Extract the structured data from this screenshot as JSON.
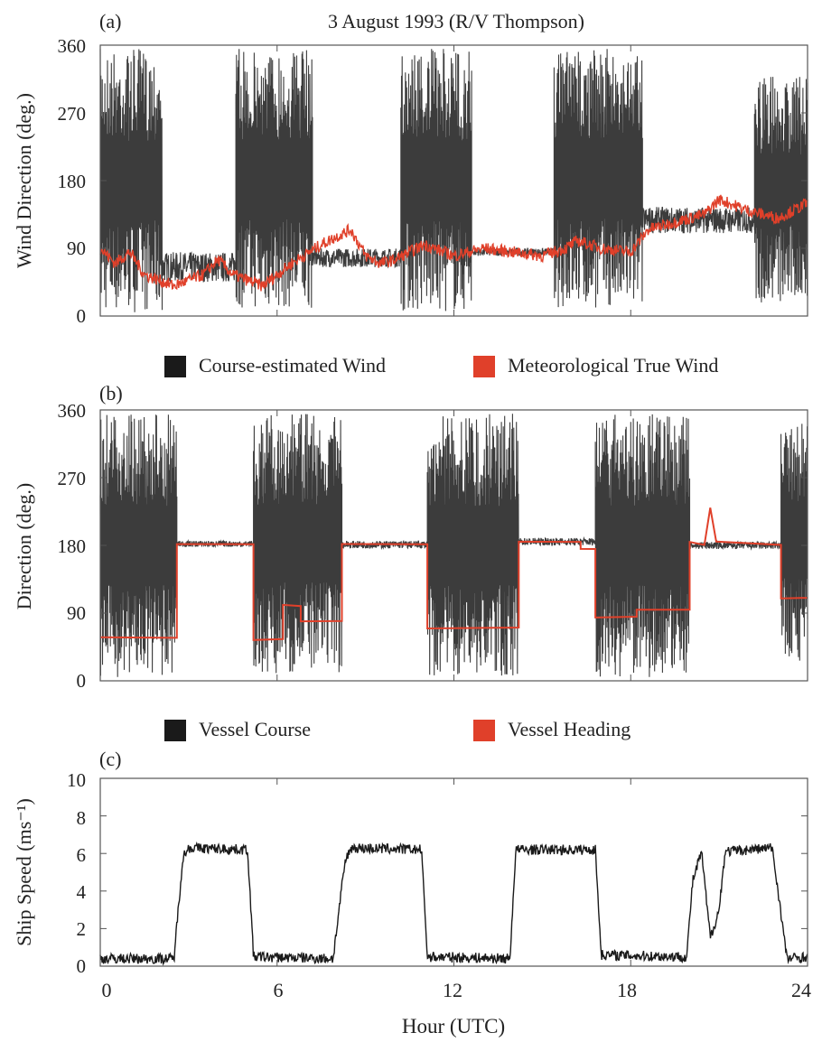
{
  "figure_title": "3 August 1993 (R/V Thompson)",
  "colors": {
    "black_series": "#1a1a1a",
    "red_series": "#e0402a",
    "axis": "#555555"
  },
  "chart_data": [
    {
      "panel": "(a)",
      "type": "line",
      "ylabel": "Wind Direction (deg.)",
      "xlabel": "",
      "xlim": [
        0,
        24
      ],
      "ylim": [
        0,
        360
      ],
      "yticks": [
        "0",
        "90",
        "180",
        "270",
        "360"
      ],
      "xticks": [],
      "legend_placement": "below",
      "series": [
        {
          "name": "Course-estimated Wind",
          "color": "#1a1a1a",
          "style": "oscillating",
          "segments": [
            {
              "x0": 0.0,
              "x1": 2.1,
              "lo": 5,
              "hi": 355
            },
            {
              "x0": 2.1,
              "x1": 4.6,
              "lo": 45,
              "hi": 85
            },
            {
              "x0": 4.6,
              "x1": 7.2,
              "lo": 10,
              "hi": 355
            },
            {
              "x0": 7.2,
              "x1": 10.2,
              "lo": 65,
              "hi": 90
            },
            {
              "x0": 10.2,
              "x1": 12.6,
              "lo": 5,
              "hi": 355
            },
            {
              "x0": 12.6,
              "x1": 15.4,
              "lo": 80,
              "hi": 90
            },
            {
              "x0": 15.4,
              "x1": 18.4,
              "lo": 10,
              "hi": 355
            },
            {
              "x0": 18.4,
              "x1": 22.2,
              "lo": 110,
              "hi": 145
            },
            {
              "x0": 22.2,
              "x1": 24.0,
              "lo": 15,
              "hi": 320
            }
          ]
        },
        {
          "name": "Meteorological True Wind",
          "color": "#e0402a",
          "style": "noisy",
          "points": [
            [
              0,
              90
            ],
            [
              0.5,
              70
            ],
            [
              1,
              85
            ],
            [
              1.5,
              55
            ],
            [
              2.5,
              40
            ],
            [
              3.5,
              55
            ],
            [
              4,
              75
            ],
            [
              4.5,
              55
            ],
            [
              5.5,
              40
            ],
            [
              6.5,
              70
            ],
            [
              7.5,
              95
            ],
            [
              8.5,
              115
            ],
            [
              9,
              80
            ],
            [
              9.5,
              70
            ],
            [
              10,
              75
            ],
            [
              11,
              95
            ],
            [
              12,
              80
            ],
            [
              13,
              90
            ],
            [
              14,
              85
            ],
            [
              15,
              80
            ],
            [
              15.8,
              90
            ],
            [
              16.2,
              100
            ],
            [
              17,
              90
            ],
            [
              18,
              85
            ],
            [
              18.6,
              115
            ],
            [
              19.5,
              125
            ],
            [
              20.5,
              135
            ],
            [
              21,
              155
            ],
            [
              22,
              140
            ],
            [
              23,
              130
            ],
            [
              24,
              150
            ]
          ]
        }
      ]
    },
    {
      "panel": "(b)",
      "type": "line",
      "ylabel": "Direction (deg.)",
      "xlabel": "",
      "xlim": [
        0,
        24
      ],
      "ylim": [
        0,
        360
      ],
      "yticks": [
        "0",
        "90",
        "180",
        "270",
        "360"
      ],
      "xticks": [],
      "legend_placement": "below",
      "series": [
        {
          "name": "Vessel Course",
          "color": "#1a1a1a",
          "style": "oscillating",
          "segments": [
            {
              "x0": 0.0,
              "x1": 2.6,
              "lo": 5,
              "hi": 355
            },
            {
              "x0": 2.6,
              "x1": 5.2,
              "lo": 178,
              "hi": 186
            },
            {
              "x0": 5.2,
              "x1": 8.2,
              "lo": 10,
              "hi": 355
            },
            {
              "x0": 8.2,
              "x1": 11.1,
              "lo": 176,
              "hi": 186
            },
            {
              "x0": 11.1,
              "x1": 14.2,
              "lo": 5,
              "hi": 355
            },
            {
              "x0": 14.2,
              "x1": 16.8,
              "lo": 180,
              "hi": 190
            },
            {
              "x0": 16.8,
              "x1": 20.0,
              "lo": 5,
              "hi": 355
            },
            {
              "x0": 20.0,
              "x1": 23.1,
              "lo": 175,
              "hi": 185
            },
            {
              "x0": 23.1,
              "x1": 24.0,
              "lo": 20,
              "hi": 355
            }
          ]
        },
        {
          "name": "Vessel Heading",
          "color": "#e0402a",
          "style": "step",
          "points": [
            [
              0,
              58
            ],
            [
              2.6,
              58
            ],
            [
              2.6,
              182
            ],
            [
              5.2,
              182
            ],
            [
              5.2,
              55
            ],
            [
              6.2,
              55
            ],
            [
              6.2,
              100
            ],
            [
              6.8,
              100
            ],
            [
              6.8,
              80
            ],
            [
              8.2,
              80
            ],
            [
              8.2,
              182
            ],
            [
              11.1,
              182
            ],
            [
              11.1,
              70
            ],
            [
              14.2,
              70
            ],
            [
              14.2,
              185
            ],
            [
              16.3,
              185
            ],
            [
              16.3,
              175
            ],
            [
              16.8,
              175
            ],
            [
              16.8,
              85
            ],
            [
              18.2,
              85
            ],
            [
              18.2,
              95
            ],
            [
              20.0,
              95
            ],
            [
              20.0,
              185
            ],
            [
              20.5,
              180
            ],
            [
              20.7,
              230
            ],
            [
              20.9,
              185
            ],
            [
              23.1,
              180
            ],
            [
              23.1,
              110
            ],
            [
              24,
              110
            ]
          ]
        }
      ]
    },
    {
      "panel": "(c)",
      "type": "line",
      "ylabel": "Ship Speed (ms⁻¹)",
      "xlabel": "Hour (UTC)",
      "xlim": [
        0,
        24
      ],
      "ylim": [
        0,
        10
      ],
      "yticks": [
        "0",
        "2",
        "4",
        "6",
        "8",
        "10"
      ],
      "xticks": [
        "0",
        "6",
        "12",
        "18",
        "24"
      ],
      "series": [
        {
          "name": "",
          "color": "#1a1a1a",
          "style": "noisy",
          "points": [
            [
              0,
              0.4
            ],
            [
              2.5,
              0.4
            ],
            [
              2.8,
              5.8
            ],
            [
              3.0,
              6.3
            ],
            [
              5.0,
              6.2
            ],
            [
              5.2,
              0.5
            ],
            [
              7.9,
              0.4
            ],
            [
              8.3,
              5.5
            ],
            [
              8.5,
              6.3
            ],
            [
              10.9,
              6.2
            ],
            [
              11.1,
              0.5
            ],
            [
              13.9,
              0.4
            ],
            [
              14.1,
              6.2
            ],
            [
              16.8,
              6.2
            ],
            [
              17.0,
              0.6
            ],
            [
              19.9,
              0.5
            ],
            [
              20.1,
              4.5
            ],
            [
              20.4,
              6.1
            ],
            [
              20.7,
              1.5
            ],
            [
              21.0,
              3.0
            ],
            [
              21.2,
              6.1
            ],
            [
              22.8,
              6.3
            ],
            [
              23.0,
              4.0
            ],
            [
              23.3,
              0.4
            ],
            [
              24,
              0.5
            ]
          ]
        }
      ]
    }
  ]
}
